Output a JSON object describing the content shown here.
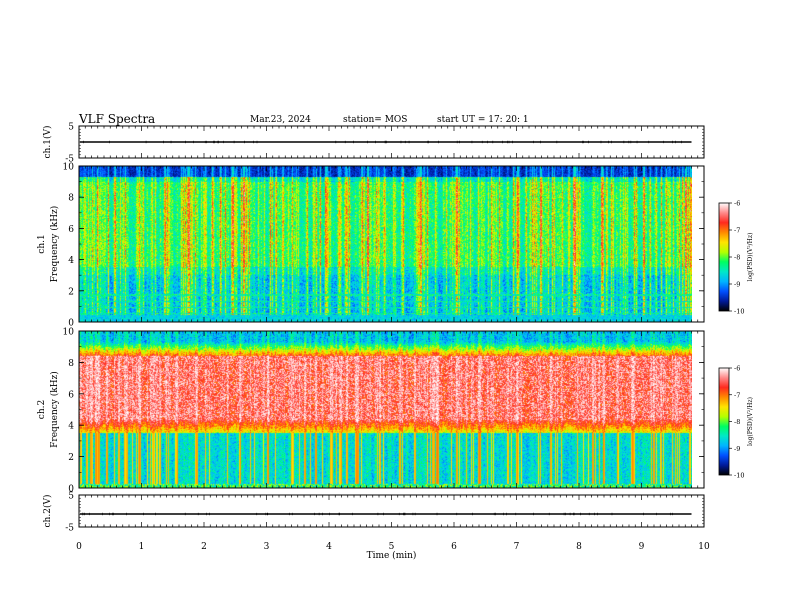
{
  "header": {
    "title": "VLF Spectra",
    "date": "Mar.23, 2024",
    "station": "station= MOS",
    "start": "start  UT  =   17: 20: 1"
  },
  "colors": {
    "colormap": [
      "#000000",
      "#001a99",
      "#0050ff",
      "#00b4ff",
      "#00e8c8",
      "#00ff60",
      "#b4ff00",
      "#ffe400",
      "#ff8a00",
      "#ff2a1e",
      "#ff8a8a",
      "#ffffff"
    ]
  },
  "chart_data": [
    {
      "type": "line",
      "panel": "ch1-waveform",
      "ylabel": "ch.1(V)",
      "ylim": [
        -5,
        5
      ],
      "yticks": [
        "5",
        "-5"
      ],
      "series": [
        {
          "values": [
            0,
            0
          ]
        }
      ]
    },
    {
      "type": "heatmap",
      "panel": "ch1-spectrogram",
      "ylabel": "ch.1\nFrequency (kHz)",
      "ylim": [
        0,
        10
      ],
      "yticks": [
        "0",
        "2",
        "4",
        "6",
        "8",
        "10"
      ],
      "colorbar": {
        "label": "log(PSD)(V²/Hz)",
        "range": [
          -10,
          -6
        ],
        "ticks": [
          "-6",
          "-7",
          "-8",
          "-9",
          "-10"
        ]
      }
    },
    {
      "type": "heatmap",
      "panel": "ch2-spectrogram",
      "ylabel": "ch.2\nFrequency (kHz)",
      "ylim": [
        0,
        10
      ],
      "yticks": [
        "0",
        "2",
        "4",
        "6",
        "8",
        "10"
      ],
      "colorbar": {
        "label": "log(PSD)(V²/Hz)",
        "range": [
          -10,
          -6
        ],
        "ticks": [
          "-6",
          "-7",
          "-8",
          "-9",
          "-10"
        ]
      }
    },
    {
      "type": "line",
      "panel": "ch2-waveform",
      "ylabel": "ch.2(V)",
      "ylim": [
        -5,
        5
      ],
      "yticks": [
        "5",
        "-5"
      ],
      "series": [
        {
          "values": [
            0,
            0
          ]
        }
      ]
    }
  ],
  "xaxis": {
    "label": "Time  (min)",
    "xlim": [
      0,
      10
    ],
    "data_end": 9.8,
    "ticks": [
      "0",
      "1",
      "2",
      "3",
      "4",
      "5",
      "6",
      "7",
      "8",
      "9",
      "10"
    ]
  }
}
